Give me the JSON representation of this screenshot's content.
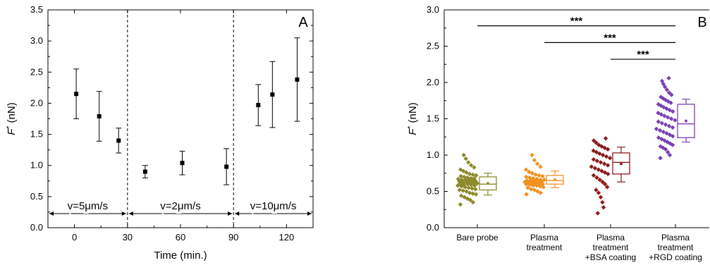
{
  "chart_data": [
    {
      "panel": "A",
      "type": "scatter",
      "error_bars": true,
      "xlabel": "Time (min.)",
      "ylabel": "F* (nN)",
      "ylabel_main": "F",
      "ylabel_sup": "*",
      "ylabel_unit": "(nN)",
      "xlim": [
        -15,
        135
      ],
      "ylim": [
        0,
        3.5
      ],
      "x_axis_ticks": [
        0,
        30,
        60,
        90,
        120
      ],
      "x_tick_labels": [
        "0",
        "30",
        "60",
        "90",
        "120"
      ],
      "y_axis_ticks": [
        0.0,
        0.5,
        1.0,
        1.5,
        2.0,
        2.5,
        3.0,
        3.5
      ],
      "y_tick_labels": [
        "0.0",
        "0.5",
        "1.0",
        "1.5",
        "2.0",
        "2.5",
        "3.0",
        "3.5"
      ],
      "dividers_x": [
        30,
        90
      ],
      "segments": [
        {
          "label": "v=5μm/s",
          "from": -15,
          "to": 30
        },
        {
          "label": "v=2μm/s",
          "from": 30,
          "to": 90
        },
        {
          "label": "v=10μm/s",
          "from": 90,
          "to": 135
        }
      ],
      "points": [
        {
          "x": 1,
          "y": 2.15,
          "low": 1.75,
          "high": 2.55
        },
        {
          "x": 14,
          "y": 1.79,
          "low": 1.39,
          "high": 2.19
        },
        {
          "x": 25,
          "y": 1.4,
          "low": 1.2,
          "high": 1.6
        },
        {
          "x": 40,
          "y": 0.9,
          "low": 0.8,
          "high": 1.0
        },
        {
          "x": 61,
          "y": 1.04,
          "low": 0.85,
          "high": 1.23
        },
        {
          "x": 86,
          "y": 0.98,
          "low": 0.69,
          "high": 1.27
        },
        {
          "x": 104,
          "y": 1.97,
          "low": 1.64,
          "high": 2.3
        },
        {
          "x": 112,
          "y": 2.14,
          "low": 1.61,
          "high": 2.67
        },
        {
          "x": 126,
          "y": 2.38,
          "low": 1.71,
          "high": 3.05
        }
      ],
      "panel_letter": "A"
    },
    {
      "panel": "B",
      "type": "box",
      "ylabel": "F* (nN)",
      "ylabel_main": "F",
      "ylabel_sup": "*",
      "ylabel_unit": "(nN)",
      "ylim": [
        0,
        3.0
      ],
      "y_axis_ticks": [
        0.0,
        0.5,
        1.0,
        1.5,
        2.0,
        2.5,
        3.0
      ],
      "y_tick_labels": [
        "0.0",
        "0.5",
        "1.0",
        "1.5",
        "2.0",
        "2.5",
        "3.0"
      ],
      "categories": [
        {
          "label_lines": [
            "Bare probe"
          ],
          "color": "#8b8a2a",
          "box": {
            "whisker_low": 0.45,
            "q1": 0.52,
            "median": 0.6,
            "q3": 0.7,
            "whisker_high": 0.75,
            "mean": 0.61
          },
          "points": [
            0.32,
            0.35,
            0.38,
            0.4,
            0.42,
            0.44,
            0.46,
            0.47,
            0.48,
            0.5,
            0.51,
            0.52,
            0.53,
            0.54,
            0.55,
            0.56,
            0.57,
            0.58,
            0.58,
            0.59,
            0.6,
            0.6,
            0.61,
            0.61,
            0.62,
            0.62,
            0.63,
            0.63,
            0.64,
            0.64,
            0.65,
            0.65,
            0.66,
            0.66,
            0.67,
            0.68,
            0.68,
            0.69,
            0.7,
            0.71,
            0.72,
            0.73,
            0.74,
            0.76,
            0.78,
            0.8,
            0.83,
            0.86,
            0.9,
            0.95,
            1.0
          ]
        },
        {
          "label_lines": [
            "Plasma",
            "treatment"
          ],
          "color": "#f0901f",
          "box": {
            "whisker_low": 0.55,
            "q1": 0.6,
            "median": 0.65,
            "q3": 0.72,
            "whisker_high": 0.78,
            "mean": 0.66
          },
          "points": [
            0.46,
            0.48,
            0.5,
            0.52,
            0.53,
            0.55,
            0.56,
            0.57,
            0.58,
            0.58,
            0.59,
            0.6,
            0.6,
            0.61,
            0.61,
            0.62,
            0.62,
            0.63,
            0.63,
            0.64,
            0.64,
            0.65,
            0.65,
            0.66,
            0.66,
            0.67,
            0.68,
            0.69,
            0.7,
            0.71,
            0.72,
            0.73,
            0.75,
            0.77,
            0.8,
            0.84,
            0.88,
            0.93,
            1.0
          ]
        },
        {
          "label_lines": [
            "Plasma",
            "treatment",
            "+BSA coating"
          ],
          "color": "#8b1a1a",
          "box": {
            "whisker_low": 0.63,
            "q1": 0.74,
            "median": 0.9,
            "q3": 1.03,
            "whisker_high": 1.11,
            "mean": 0.88
          },
          "points": [
            0.2,
            0.28,
            0.35,
            0.42,
            0.48,
            0.52,
            0.56,
            0.6,
            0.63,
            0.66,
            0.69,
            0.72,
            0.74,
            0.76,
            0.78,
            0.8,
            0.82,
            0.84,
            0.86,
            0.88,
            0.9,
            0.92,
            0.94,
            0.96,
            0.98,
            1.0,
            1.02,
            1.04,
            1.06,
            1.08,
            1.1,
            1.12,
            1.14,
            1.17,
            1.2,
            1.23
          ]
        },
        {
          "label_lines": [
            "Plasma",
            "treatment",
            "+RGD coating"
          ],
          "color": "#7b3fb5",
          "box": {
            "whisker_low": 1.18,
            "q1": 1.24,
            "median": 1.43,
            "q3": 1.7,
            "whisker_high": 1.77,
            "mean": 1.47
          },
          "points": [
            0.96,
            1.0,
            1.04,
            1.08,
            1.1,
            1.12,
            1.14,
            1.16,
            1.18,
            1.2,
            1.22,
            1.24,
            1.26,
            1.28,
            1.3,
            1.32,
            1.34,
            1.36,
            1.38,
            1.4,
            1.42,
            1.44,
            1.46,
            1.48,
            1.5,
            1.52,
            1.54,
            1.56,
            1.58,
            1.6,
            1.62,
            1.64,
            1.66,
            1.68,
            1.7,
            1.72,
            1.74,
            1.76,
            1.78,
            1.8,
            1.83,
            1.86,
            1.9,
            1.94,
            1.98,
            2.02,
            2.06
          ]
        }
      ],
      "significance": [
        {
          "from": 0,
          "to": 3,
          "y": 2.78,
          "label": "***"
        },
        {
          "from": 1,
          "to": 3,
          "y": 2.55,
          "label": "***"
        },
        {
          "from": 2,
          "to": 3,
          "y": 2.32,
          "label": "***"
        }
      ],
      "panel_letter": "B"
    }
  ]
}
